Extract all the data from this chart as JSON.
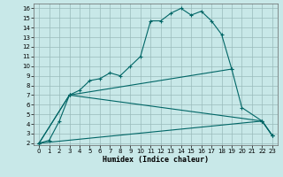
{
  "xlabel": "Humidex (Indice chaleur)",
  "bg_color": "#c8e8e8",
  "grid_color": "#99bbbb",
  "line_color": "#006666",
  "xlim": [
    -0.5,
    23.5
  ],
  "ylim": [
    1.8,
    16.5
  ],
  "xticks": [
    0,
    1,
    2,
    3,
    4,
    5,
    6,
    7,
    8,
    9,
    10,
    11,
    12,
    13,
    14,
    15,
    16,
    17,
    18,
    19,
    20,
    21,
    22,
    23
  ],
  "yticks": [
    2,
    3,
    4,
    5,
    6,
    7,
    8,
    9,
    10,
    11,
    12,
    13,
    14,
    15,
    16
  ],
  "lines": [
    {
      "x": [
        0,
        1,
        2,
        3,
        4,
        5,
        6,
        7,
        8,
        9,
        10,
        11,
        12,
        13,
        14,
        15,
        16,
        17,
        18,
        19
      ],
      "y": [
        2.0,
        2.3,
        4.3,
        7.0,
        7.5,
        8.5,
        8.7,
        9.3,
        9.0,
        10.0,
        11.0,
        14.7,
        14.7,
        15.5,
        16.0,
        15.3,
        15.7,
        14.7,
        13.3,
        9.7
      ]
    },
    {
      "x": [
        0,
        3,
        19,
        20,
        22,
        23
      ],
      "y": [
        2.0,
        7.0,
        9.7,
        5.7,
        4.3,
        2.8
      ]
    },
    {
      "x": [
        0,
        3,
        22,
        23
      ],
      "y": [
        2.0,
        7.0,
        4.3,
        2.8
      ]
    },
    {
      "x": [
        0,
        22,
        23
      ],
      "y": [
        2.0,
        4.3,
        2.8
      ]
    }
  ]
}
